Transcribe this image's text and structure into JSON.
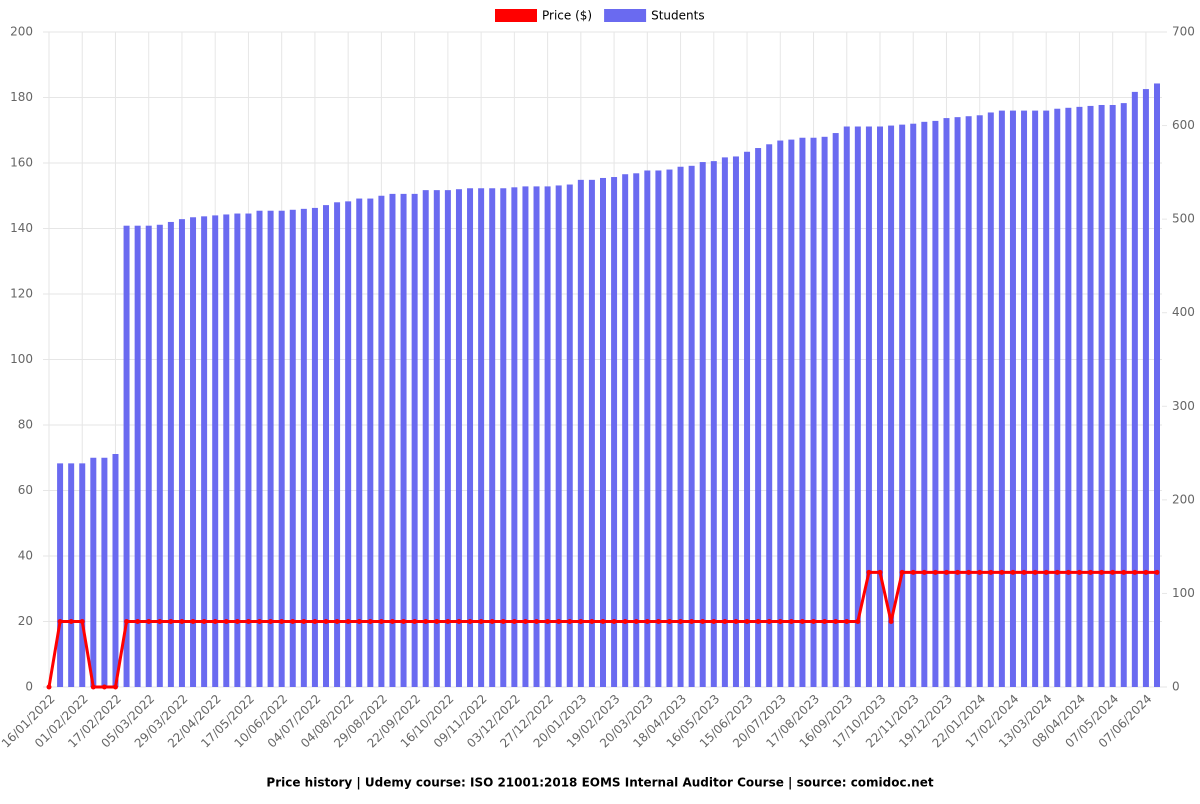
{
  "chart_data": {
    "type": "bar",
    "title": "Price history | Udemy course: ISO 21001:2018 EOMS Internal Auditor Course | source: comidoc.net",
    "categories": [
      "16/01/2022",
      null,
      null,
      "01/02/2022",
      null,
      null,
      "17/02/2022",
      null,
      null,
      "05/03/2022",
      null,
      null,
      "29/03/2022",
      null,
      null,
      "22/04/2022",
      null,
      null,
      "17/05/2022",
      null,
      null,
      "10/06/2022",
      null,
      null,
      "04/07/2022",
      null,
      null,
      "04/08/2022",
      null,
      null,
      "29/08/2022",
      null,
      null,
      "22/09/2022",
      null,
      null,
      "16/10/2022",
      null,
      null,
      "09/11/2022",
      null,
      null,
      "03/12/2022",
      null,
      null,
      "27/12/2022",
      null,
      null,
      "20/01/2023",
      null,
      null,
      "19/02/2023",
      null,
      null,
      "20/03/2023",
      null,
      null,
      "18/04/2023",
      null,
      null,
      "16/05/2023",
      null,
      null,
      "15/06/2023",
      null,
      null,
      "20/07/2023",
      null,
      null,
      "17/08/2023",
      null,
      null,
      "16/09/2023",
      null,
      null,
      "17/10/2023",
      null,
      null,
      "22/11/2023",
      null,
      null,
      "19/12/2023",
      null,
      null,
      "22/01/2024",
      null,
      null,
      "17/02/2024",
      null,
      null,
      "13/03/2024",
      null,
      null,
      "08/04/2024",
      null,
      null,
      "07/05/2024",
      null,
      null,
      "07/06/2024",
      null
    ],
    "series": [
      {
        "name": "Price ($)",
        "color": "#ff0000",
        "type": "line",
        "values": [
          0,
          20,
          20,
          20,
          0,
          0,
          0,
          20,
          20,
          20,
          20,
          20,
          20,
          20,
          20,
          20,
          20,
          20,
          20,
          20,
          20,
          20,
          20,
          20,
          20,
          20,
          20,
          20,
          20,
          20,
          20,
          20,
          20,
          20,
          20,
          20,
          20,
          20,
          20,
          20,
          20,
          20,
          20,
          20,
          20,
          20,
          20,
          20,
          20,
          20,
          20,
          20,
          20,
          20,
          20,
          20,
          20,
          20,
          20,
          20,
          20,
          20,
          20,
          20,
          20,
          20,
          20,
          20,
          20,
          20,
          20,
          20,
          20,
          20,
          35,
          35,
          20,
          35,
          35,
          35,
          35,
          35,
          35,
          35,
          35,
          35,
          35,
          35,
          35,
          35,
          35,
          35,
          35,
          35,
          35,
          35,
          35,
          35,
          35,
          35,
          35
        ]
      },
      {
        "name": "Students",
        "color": "#6a6af0",
        "type": "bar",
        "axis": "y2",
        "values": [
          null,
          239,
          239,
          239,
          245,
          245,
          249,
          493,
          493,
          493,
          494,
          497,
          500,
          502,
          503,
          504,
          505,
          506,
          506,
          509,
          509,
          509,
          510,
          511,
          512,
          515,
          518,
          519,
          522,
          522,
          525,
          527,
          527,
          527,
          531,
          531,
          531,
          532,
          533,
          533,
          533,
          533,
          534,
          535,
          535,
          535,
          536,
          537,
          542,
          542,
          544,
          545,
          548,
          549,
          552,
          552,
          553,
          556,
          557,
          561,
          562,
          566,
          567,
          572,
          576,
          580,
          584,
          585,
          587,
          587,
          588,
          592,
          599,
          599,
          599,
          599,
          600,
          601,
          602,
          604,
          605,
          608,
          609,
          610,
          611,
          614,
          616,
          616,
          616,
          616,
          616,
          618,
          619,
          620,
          621,
          622,
          622,
          624,
          636,
          639,
          645
        ]
      }
    ],
    "ylim": [
      0,
      200
    ],
    "yticks": [
      0,
      20,
      40,
      60,
      80,
      100,
      120,
      140,
      160,
      180,
      200
    ],
    "y2lim": [
      0,
      700
    ],
    "y2ticks": [
      0,
      100,
      200,
      300,
      400,
      500,
      600,
      700
    ],
    "grid": true,
    "legend": "top"
  }
}
